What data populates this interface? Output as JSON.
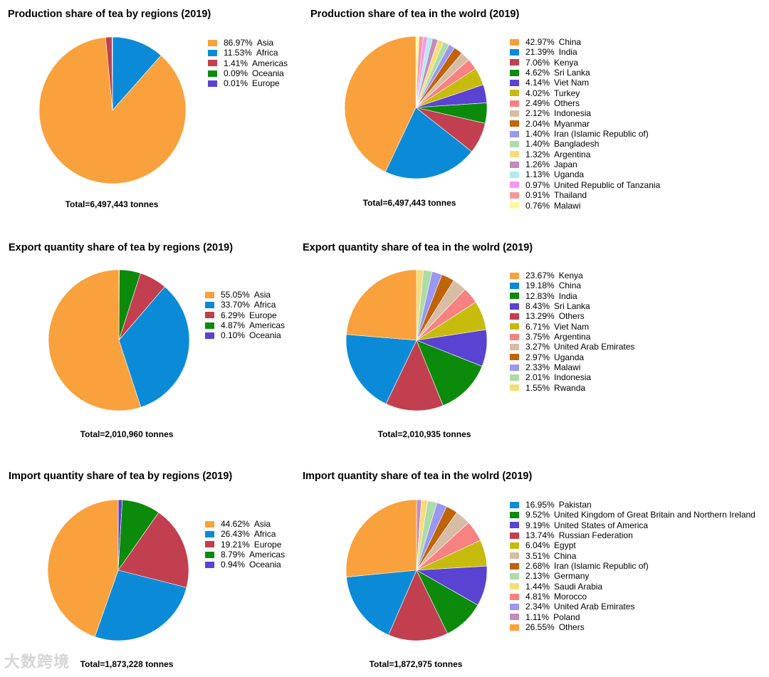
{
  "watermark": "大数跨境",
  "chart_data": [
    {
      "id": "prod_regions",
      "type": "pie",
      "title": "Production share of tea by regions (2019)",
      "total": "Total=6,497,443 tonnes",
      "slices": [
        {
          "pct": "86.97%",
          "label": "Asia",
          "value": 86.97,
          "color": "#F9A13D"
        },
        {
          "pct": "11.53%",
          "label": "Africa",
          "value": 11.53,
          "color": "#0B8BD7"
        },
        {
          "pct": "1.41%",
          "label": "Americas",
          "value": 1.41,
          "color": "#C13F4E"
        },
        {
          "pct": "0.09%",
          "label": "Oceania",
          "value": 0.09,
          "color": "#0C8A0C"
        },
        {
          "pct": "0.01%",
          "label": "Europe",
          "value": 0.01,
          "color": "#5A43D1"
        }
      ],
      "draw_order": [
        1,
        0,
        2,
        4,
        3
      ]
    },
    {
      "id": "prod_world",
      "type": "pie",
      "title": "Production share of tea in the wolrd (2019)",
      "total": "Total=6,497,443 tonnes",
      "slices": [
        {
          "pct": "42.97%",
          "label": "China",
          "value": 42.97,
          "color": "#F9A13D"
        },
        {
          "pct": "21.39%",
          "label": "India",
          "value": 21.39,
          "color": "#0B8BD7"
        },
        {
          "pct": "7.06%",
          "label": "Kenya",
          "value": 7.06,
          "color": "#C13F4E"
        },
        {
          "pct": "4.62%",
          "label": "Sri Lanka",
          "value": 4.62,
          "color": "#0C8A0C"
        },
        {
          "pct": "4.14%",
          "label": "Viet Nam",
          "value": 4.14,
          "color": "#5A43D1"
        },
        {
          "pct": "4.02%",
          "label": "Turkey",
          "value": 4.02,
          "color": "#C7BB0E"
        },
        {
          "pct": "2.49%",
          "label": "Others",
          "value": 2.49,
          "color": "#F88181"
        },
        {
          "pct": "2.12%",
          "label": "Indonesia",
          "value": 2.12,
          "color": "#D9BCA4"
        },
        {
          "pct": "2.04%",
          "label": "Myanmar",
          "value": 2.04,
          "color": "#C0640A"
        },
        {
          "pct": "1.40%",
          "label": "Iran (Islamic Republic of)",
          "value": 1.4,
          "color": "#9A98F2"
        },
        {
          "pct": "1.40%",
          "label": "Bangladesh",
          "value": 1.4,
          "color": "#AEDCA8"
        },
        {
          "pct": "1.32%",
          "label": "Argentina",
          "value": 1.32,
          "color": "#F6DC7A"
        },
        {
          "pct": "1.26%",
          "label": "Japan",
          "value": 1.26,
          "color": "#C28CB9"
        },
        {
          "pct": "1.13%",
          "label": "Uganda",
          "value": 1.13,
          "color": "#B1EAEF"
        },
        {
          "pct": "0.97%",
          "label": "United Republic of Tanzania",
          "value": 0.97,
          "color": "#F895F3"
        },
        {
          "pct": "0.91%",
          "label": "Thailand",
          "value": 0.91,
          "color": "#F69896"
        },
        {
          "pct": "0.76%",
          "label": "Malawi",
          "value": 0.76,
          "color": "#FDF9A0"
        }
      ],
      "draw_order": [
        16,
        15,
        14,
        13,
        12,
        11,
        10,
        9,
        8,
        7,
        6,
        5,
        4,
        3,
        2,
        1,
        0
      ]
    },
    {
      "id": "exp_regions",
      "type": "pie",
      "title": "Export quantity share of tea by regions (2019)",
      "total": "Total=2,010,960 tonnes",
      "slices": [
        {
          "pct": "55.05%",
          "label": "Asia",
          "value": 55.05,
          "color": "#F9A13D"
        },
        {
          "pct": "33.70%",
          "label": "Africa",
          "value": 33.7,
          "color": "#0B8BD7"
        },
        {
          "pct": "6.29%",
          "label": "Europe",
          "value": 6.29,
          "color": "#C13F4E"
        },
        {
          "pct": "4.87%",
          "label": "Americas",
          "value": 4.87,
          "color": "#0C8A0C"
        },
        {
          "pct": "0.10%",
          "label": "Oceania",
          "value": 0.1,
          "color": "#5A43D1"
        }
      ],
      "draw_order": [
        4,
        3,
        2,
        1,
        0
      ]
    },
    {
      "id": "exp_world",
      "type": "pie",
      "title": "Export quantity share of tea in the wolrd (2019)",
      "total": "Total=2,010,935 tonnes",
      "slices": [
        {
          "pct": "23.67%",
          "label": "Kenya",
          "value": 23.67,
          "color": "#F9A13D"
        },
        {
          "pct": "19.18%",
          "label": "China",
          "value": 19.18,
          "color": "#0B8BD7"
        },
        {
          "pct": "12.83%",
          "label": "India",
          "value": 12.83,
          "color": "#0C8A0C"
        },
        {
          "pct": "8.43%",
          "label": "Sri Lanka",
          "value": 8.43,
          "color": "#5A43D1"
        },
        {
          "pct": "13.29%",
          "label": "Others",
          "value": 13.29,
          "color": "#C13F4E"
        },
        {
          "pct": "6.71%",
          "label": "Viet Nam",
          "value": 6.71,
          "color": "#C7BB0E"
        },
        {
          "pct": "3.75%",
          "label": "Argentina",
          "value": 3.75,
          "color": "#F88181"
        },
        {
          "pct": "3.27%",
          "label": "United Arab Emirates",
          "value": 3.27,
          "color": "#D9BCA4"
        },
        {
          "pct": "2.97%",
          "label": "Uganda",
          "value": 2.97,
          "color": "#C0640A"
        },
        {
          "pct": "2.33%",
          "label": "Malawi",
          "value": 2.33,
          "color": "#9A98F2"
        },
        {
          "pct": "2.01%",
          "label": "Indonesia",
          "value": 2.01,
          "color": "#AEDCA8"
        },
        {
          "pct": "1.55%",
          "label": "Rwanda",
          "value": 1.55,
          "color": "#F6DC7A"
        }
      ],
      "draw_order": [
        11,
        10,
        9,
        8,
        7,
        6,
        5,
        3,
        2,
        4,
        1,
        0
      ]
    },
    {
      "id": "imp_regions",
      "type": "pie",
      "title": "Import quantity share of tea by regions (2019)",
      "total": "Total=1,873,228 tonnes",
      "slices": [
        {
          "pct": "44.62%",
          "label": "Asia",
          "value": 44.62,
          "color": "#F9A13D"
        },
        {
          "pct": "26.43%",
          "label": "Africa",
          "value": 26.43,
          "color": "#0B8BD7"
        },
        {
          "pct": "19.21%",
          "label": "Europe",
          "value": 19.21,
          "color": "#C13F4E"
        },
        {
          "pct": "8.79%",
          "label": "Americas",
          "value": 8.79,
          "color": "#0C8A0C"
        },
        {
          "pct": "0.94%",
          "label": "Oceania",
          "value": 0.94,
          "color": "#5A43D1"
        }
      ],
      "draw_order": [
        4,
        3,
        2,
        1,
        0
      ]
    },
    {
      "id": "imp_world",
      "type": "pie",
      "title": "Import quantity share of tea in the wolrd (2019)",
      "total": "Total=1,872,975 tonnes",
      "slices": [
        {
          "pct": "16.95%",
          "label": "Pakistan",
          "value": 16.95,
          "color": "#0B8BD7"
        },
        {
          "pct": "9.52%",
          "label": "United Kingdom of Great Britain and Northern Ireland",
          "value": 9.52,
          "color": "#0C8A0C"
        },
        {
          "pct": "9.19%",
          "label": "United States of America",
          "value": 9.19,
          "color": "#5A43D1"
        },
        {
          "pct": "13.74%",
          "label": "Russian Federation",
          "value": 13.74,
          "color": "#C13F4E"
        },
        {
          "pct": "6.04%",
          "label": "Egypt",
          "value": 6.04,
          "color": "#C7BB0E"
        },
        {
          "pct": "3.51%",
          "label": "China",
          "value": 3.51,
          "color": "#D9BCA4"
        },
        {
          "pct": "2.68%",
          "label": "Iran (Islamic Republic of)",
          "value": 2.68,
          "color": "#C0640A"
        },
        {
          "pct": "2.13%",
          "label": "Germany",
          "value": 2.13,
          "color": "#AEDCA8"
        },
        {
          "pct": "1.44%",
          "label": "Saudi Arabia",
          "value": 1.44,
          "color": "#F6DC7A"
        },
        {
          "pct": "4.81%",
          "label": "Morocco",
          "value": 4.81,
          "color": "#F88181"
        },
        {
          "pct": "2.34%",
          "label": "United Arab Emirates",
          "value": 2.34,
          "color": "#9A98F2"
        },
        {
          "pct": "1.11%",
          "label": "Poland",
          "value": 1.11,
          "color": "#C28CB9"
        },
        {
          "pct": "26.55%",
          "label": "Others",
          "value": 26.55,
          "color": "#F9A13D"
        }
      ],
      "draw_order": [
        11,
        8,
        7,
        10,
        6,
        5,
        9,
        4,
        2,
        1,
        3,
        0,
        12
      ]
    }
  ]
}
